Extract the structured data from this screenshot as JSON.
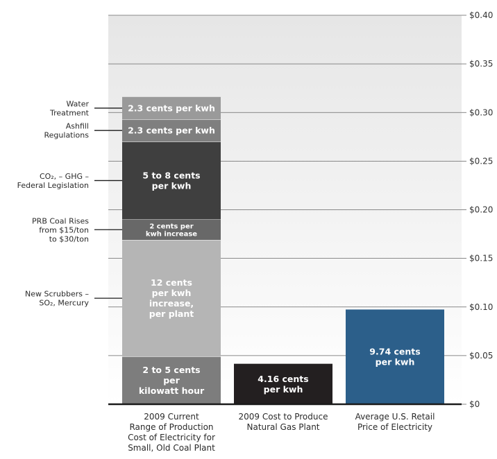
{
  "colors": {
    "background_top": "#e6e6e6",
    "background_bottom": "#ffffff",
    "gridline": "#666666",
    "axis": "#1a1a1a",
    "coal_base": "#7d7d7d",
    "scrubbers": "#b5b5b5",
    "prb_coal": "#686868",
    "co2_ghg": "#3f3f3f",
    "ashfill": "#7f7f7f",
    "water": "#9a9a9a",
    "natural_gas": "#231f20",
    "retail": "#2c5f8a"
  },
  "chart_data": {
    "type": "bar",
    "stacked": true,
    "ylim": [
      0,
      0.4
    ],
    "y_ticks": [
      {
        "value": 0.0,
        "label": "$0"
      },
      {
        "value": 0.05,
        "label": "$0.05"
      },
      {
        "value": 0.1,
        "label": "$0.10"
      },
      {
        "value": 0.15,
        "label": "$0.15"
      },
      {
        "value": 0.2,
        "label": "$0.20"
      },
      {
        "value": 0.25,
        "label": "$0.25"
      },
      {
        "value": 0.3,
        "label": "$0.30"
      },
      {
        "value": 0.35,
        "label": "$0.35"
      },
      {
        "value": 0.4,
        "label": "$0.40"
      }
    ],
    "y_axis_side": "right",
    "grid": true,
    "categories": [
      [
        "2009 Current",
        "Range of Production",
        "Cost of Electricity for",
        "Small, Old Coal Plant"
      ],
      [
        "2009 Cost to Produce",
        "Natural Gas Plant"
      ],
      [
        "Average U.S. Retail",
        "Price of Electricity"
      ]
    ],
    "bars": [
      {
        "segments": [
          {
            "key": "base",
            "value": 0.049,
            "color": "coal_base",
            "label": [
              "2 to 5 cents",
              "per",
              "kilowatt hour"
            ]
          },
          {
            "key": "scrubbers",
            "value": 0.12,
            "color": "scrubbers",
            "label": [
              "12 cents",
              "per kwh",
              "increase,",
              "per plant"
            ]
          },
          {
            "key": "prb",
            "value": 0.021,
            "color": "prb_coal",
            "label": [
              "2 cents per",
              "kwh increase"
            ]
          },
          {
            "key": "co2",
            "value": 0.08,
            "color": "co2_ghg",
            "label": [
              "5 to 8 cents",
              "per kwh"
            ]
          },
          {
            "key": "ash",
            "value": 0.023,
            "color": "ashfill",
            "label": [
              "2.3 cents per kwh"
            ]
          },
          {
            "key": "water",
            "value": 0.023,
            "color": "water",
            "label": [
              "2.3 cents per kwh"
            ]
          }
        ]
      },
      {
        "segments": [
          {
            "key": "gas",
            "value": 0.0416,
            "color": "natural_gas",
            "label": [
              "4.16 cents",
              "per kwh"
            ]
          }
        ]
      },
      {
        "segments": [
          {
            "key": "retail",
            "value": 0.0974,
            "color": "retail",
            "label": [
              "9.74 cents",
              "per kwh"
            ]
          }
        ]
      }
    ],
    "side_labels": [
      {
        "segment": "water",
        "lines": [
          "Water",
          "Treatment"
        ]
      },
      {
        "segment": "ash",
        "lines": [
          "Ashfill",
          "Regulations"
        ]
      },
      {
        "segment": "co2",
        "lines": [
          "CO₂, – GHG –",
          "Federal Legislation"
        ]
      },
      {
        "segment": "prb",
        "lines": [
          "PRB Coal Rises",
          "from $15/ton",
          "to $30/ton"
        ]
      },
      {
        "segment": "scrubbers",
        "lines": [
          "New Scrubbers –",
          "SO₂, Mercury"
        ]
      }
    ]
  }
}
